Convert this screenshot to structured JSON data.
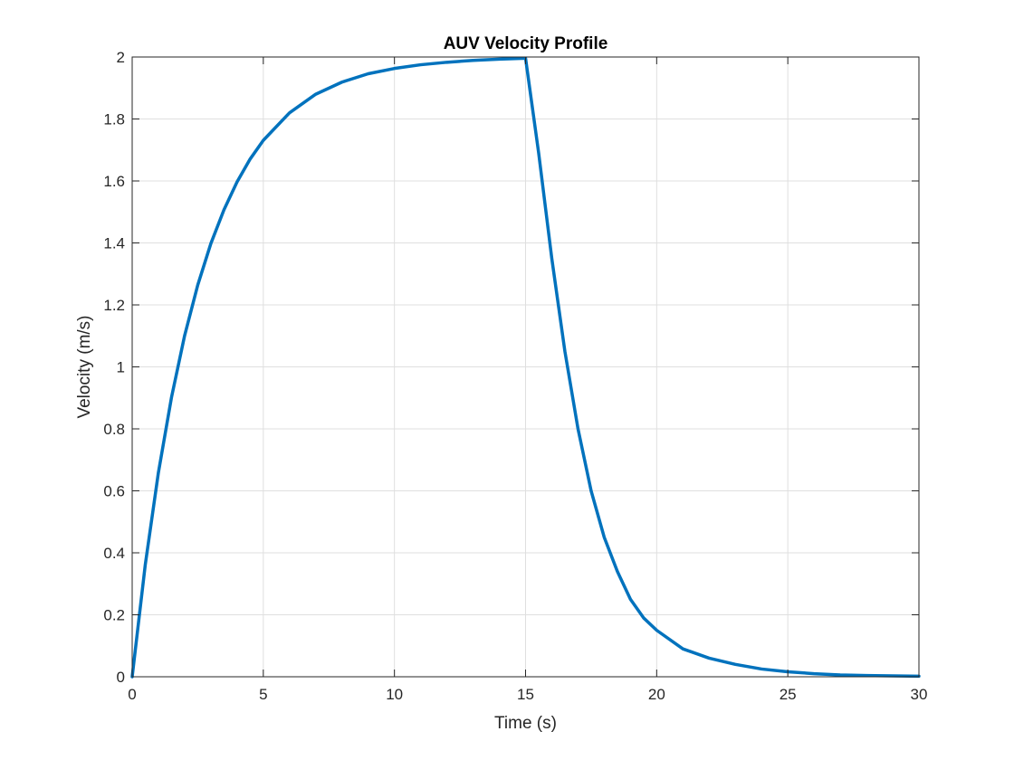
{
  "chart_data": {
    "type": "line",
    "title": "AUV Velocity Profile",
    "xlabel": "Time (s)",
    "ylabel": "Velocity (m/s)",
    "xlim": [
      0,
      30
    ],
    "ylim": [
      0,
      2
    ],
    "xticks": [
      "0",
      "5",
      "10",
      "15",
      "20",
      "25",
      "30"
    ],
    "yticks": [
      "0",
      "0.2",
      "0.4",
      "0.6",
      "0.8",
      "1",
      "1.2",
      "1.4",
      "1.6",
      "1.8",
      "2"
    ],
    "grid": true,
    "box": true,
    "series": [
      {
        "color": "#0072BD",
        "x": [
          0,
          0.5,
          1,
          1.5,
          2,
          2.5,
          3,
          3.5,
          4,
          4.5,
          5,
          6,
          7,
          8,
          9,
          10,
          11,
          12,
          13,
          14,
          15,
          15.5,
          16,
          16.5,
          17,
          17.5,
          18,
          18.5,
          19,
          19.5,
          20,
          21,
          22,
          23,
          24,
          25,
          26,
          27,
          28,
          29,
          30
        ],
        "y": [
          0,
          0.362,
          0.659,
          0.902,
          1.101,
          1.264,
          1.398,
          1.507,
          1.597,
          1.671,
          1.731,
          1.82,
          1.88,
          1.919,
          1.946,
          1.963,
          1.975,
          1.983,
          1.989,
          1.993,
          1.996,
          1.69,
          1.35,
          1.05,
          0.8,
          0.6,
          0.45,
          0.34,
          0.25,
          0.19,
          0.15,
          0.09,
          0.06,
          0.04,
          0.025,
          0.016,
          0.01,
          0.006,
          0.004,
          0.003,
          0.002
        ]
      }
    ]
  },
  "colors": {
    "line": "#0072BD",
    "grid": "#dfdfdf",
    "axis": "#262626"
  }
}
